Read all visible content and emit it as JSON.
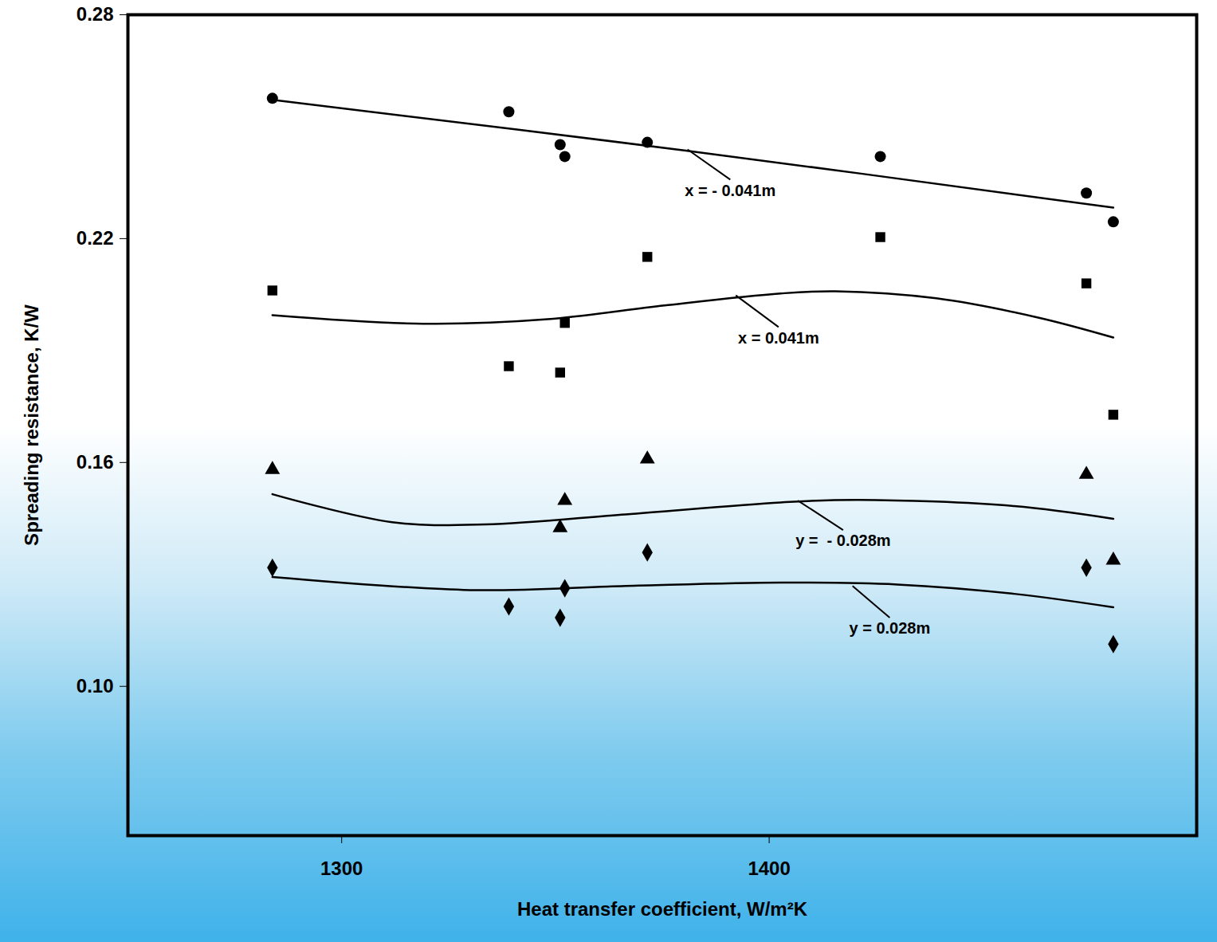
{
  "chart_data": {
    "type": "scatter",
    "x_label": "Heat transfer coefficient, W/m²K",
    "y_label": "Spreading resistance, K/W",
    "xlim": [
      1250,
      1500
    ],
    "xticks": [
      1300,
      1400
    ],
    "ylim": [
      0.06,
      0.28
    ],
    "yticks": [
      {
        "value": 0.1,
        "label": "0.10"
      },
      0.16,
      0.22,
      0.28
    ],
    "grid": false,
    "series": [
      {
        "name": "x = - 0.041m",
        "color": "#000000",
        "marker": "circle",
        "x": [
          1283.8,
          1339.1,
          1351.1,
          1352.2,
          1371.5,
          1426.0,
          1474.2,
          1480.5
        ],
        "values": [
          0.2576,
          0.254,
          0.2452,
          0.242,
          0.2458,
          0.242,
          0.2322,
          0.2245
        ],
        "fit_x": [
          1283.8,
          1380.5,
          1480.5
        ],
        "fit_values": [
          0.2572,
          0.2436,
          0.2283
        ],
        "point_x": 1380.9,
        "point_y": 0.2439,
        "label_x": 1390.9,
        "label_y": 0.2358
      },
      {
        "name": "x = 0.041m",
        "color": "#000000",
        "marker": "square",
        "x": [
          1283.8,
          1339.1,
          1351.1,
          1352.2,
          1371.5,
          1426.0,
          1474.2,
          1480.5
        ],
        "values": [
          0.2061,
          0.1858,
          0.1841,
          0.1974,
          0.2151,
          0.2204,
          0.208,
          0.1728
        ],
        "fit_x": [
          1283.8,
          1319.1,
          1348.2,
          1375.5,
          1402.7,
          1415.5,
          1439.1,
          1462.7,
          1480.5
        ],
        "fit_values": [
          0.1995,
          0.1972,
          0.1984,
          0.2021,
          0.2053,
          0.2059,
          0.204,
          0.1989,
          0.1935
        ],
        "point_x": 1392.2,
        "point_y": 0.2048,
        "label_x": 1402.2,
        "label_y": 0.1963
      },
      {
        "name": "y =  - 0.028m",
        "color": "#000000",
        "marker": "triangle",
        "x": [
          1283.8,
          1352.2,
          1351.1,
          1371.5,
          1474.2,
          1480.5
        ],
        "values": [
          0.1581,
          0.1498,
          0.1425,
          0.1609,
          0.1568,
          0.1338
        ],
        "fit_x": [
          1283.8,
          1311.8,
          1333.6,
          1366.4,
          1402.7,
          1420.9,
          1457.3,
          1480.5
        ],
        "fit_values": [
          0.1515,
          0.144,
          0.1434,
          0.1461,
          0.1493,
          0.15,
          0.1483,
          0.1449
        ],
        "point_x": 1406.7,
        "point_y": 0.1498,
        "label_x": 1417.3,
        "label_y": 0.1419
      },
      {
        "name": "y = 0.028m",
        "color": "#000000",
        "marker": "diamond",
        "x": [
          1283.8,
          1339.1,
          1351.1,
          1352.2,
          1371.5,
          1474.2,
          1480.5
        ],
        "values": [
          0.1318,
          0.1214,
          0.1184,
          0.1263,
          0.1359,
          0.1318,
          0.1113
        ],
        "fit_x": [
          1283.8,
          1330.0,
          1366.4,
          1402.7,
          1430.0,
          1457.3,
          1480.5
        ],
        "fit_values": [
          0.1293,
          0.1258,
          0.1269,
          0.1278,
          0.1273,
          0.1248,
          0.1212
        ],
        "point_x": 1419.5,
        "point_y": 0.1269,
        "label_x": 1428.2,
        "label_y": 0.1184
      }
    ]
  }
}
